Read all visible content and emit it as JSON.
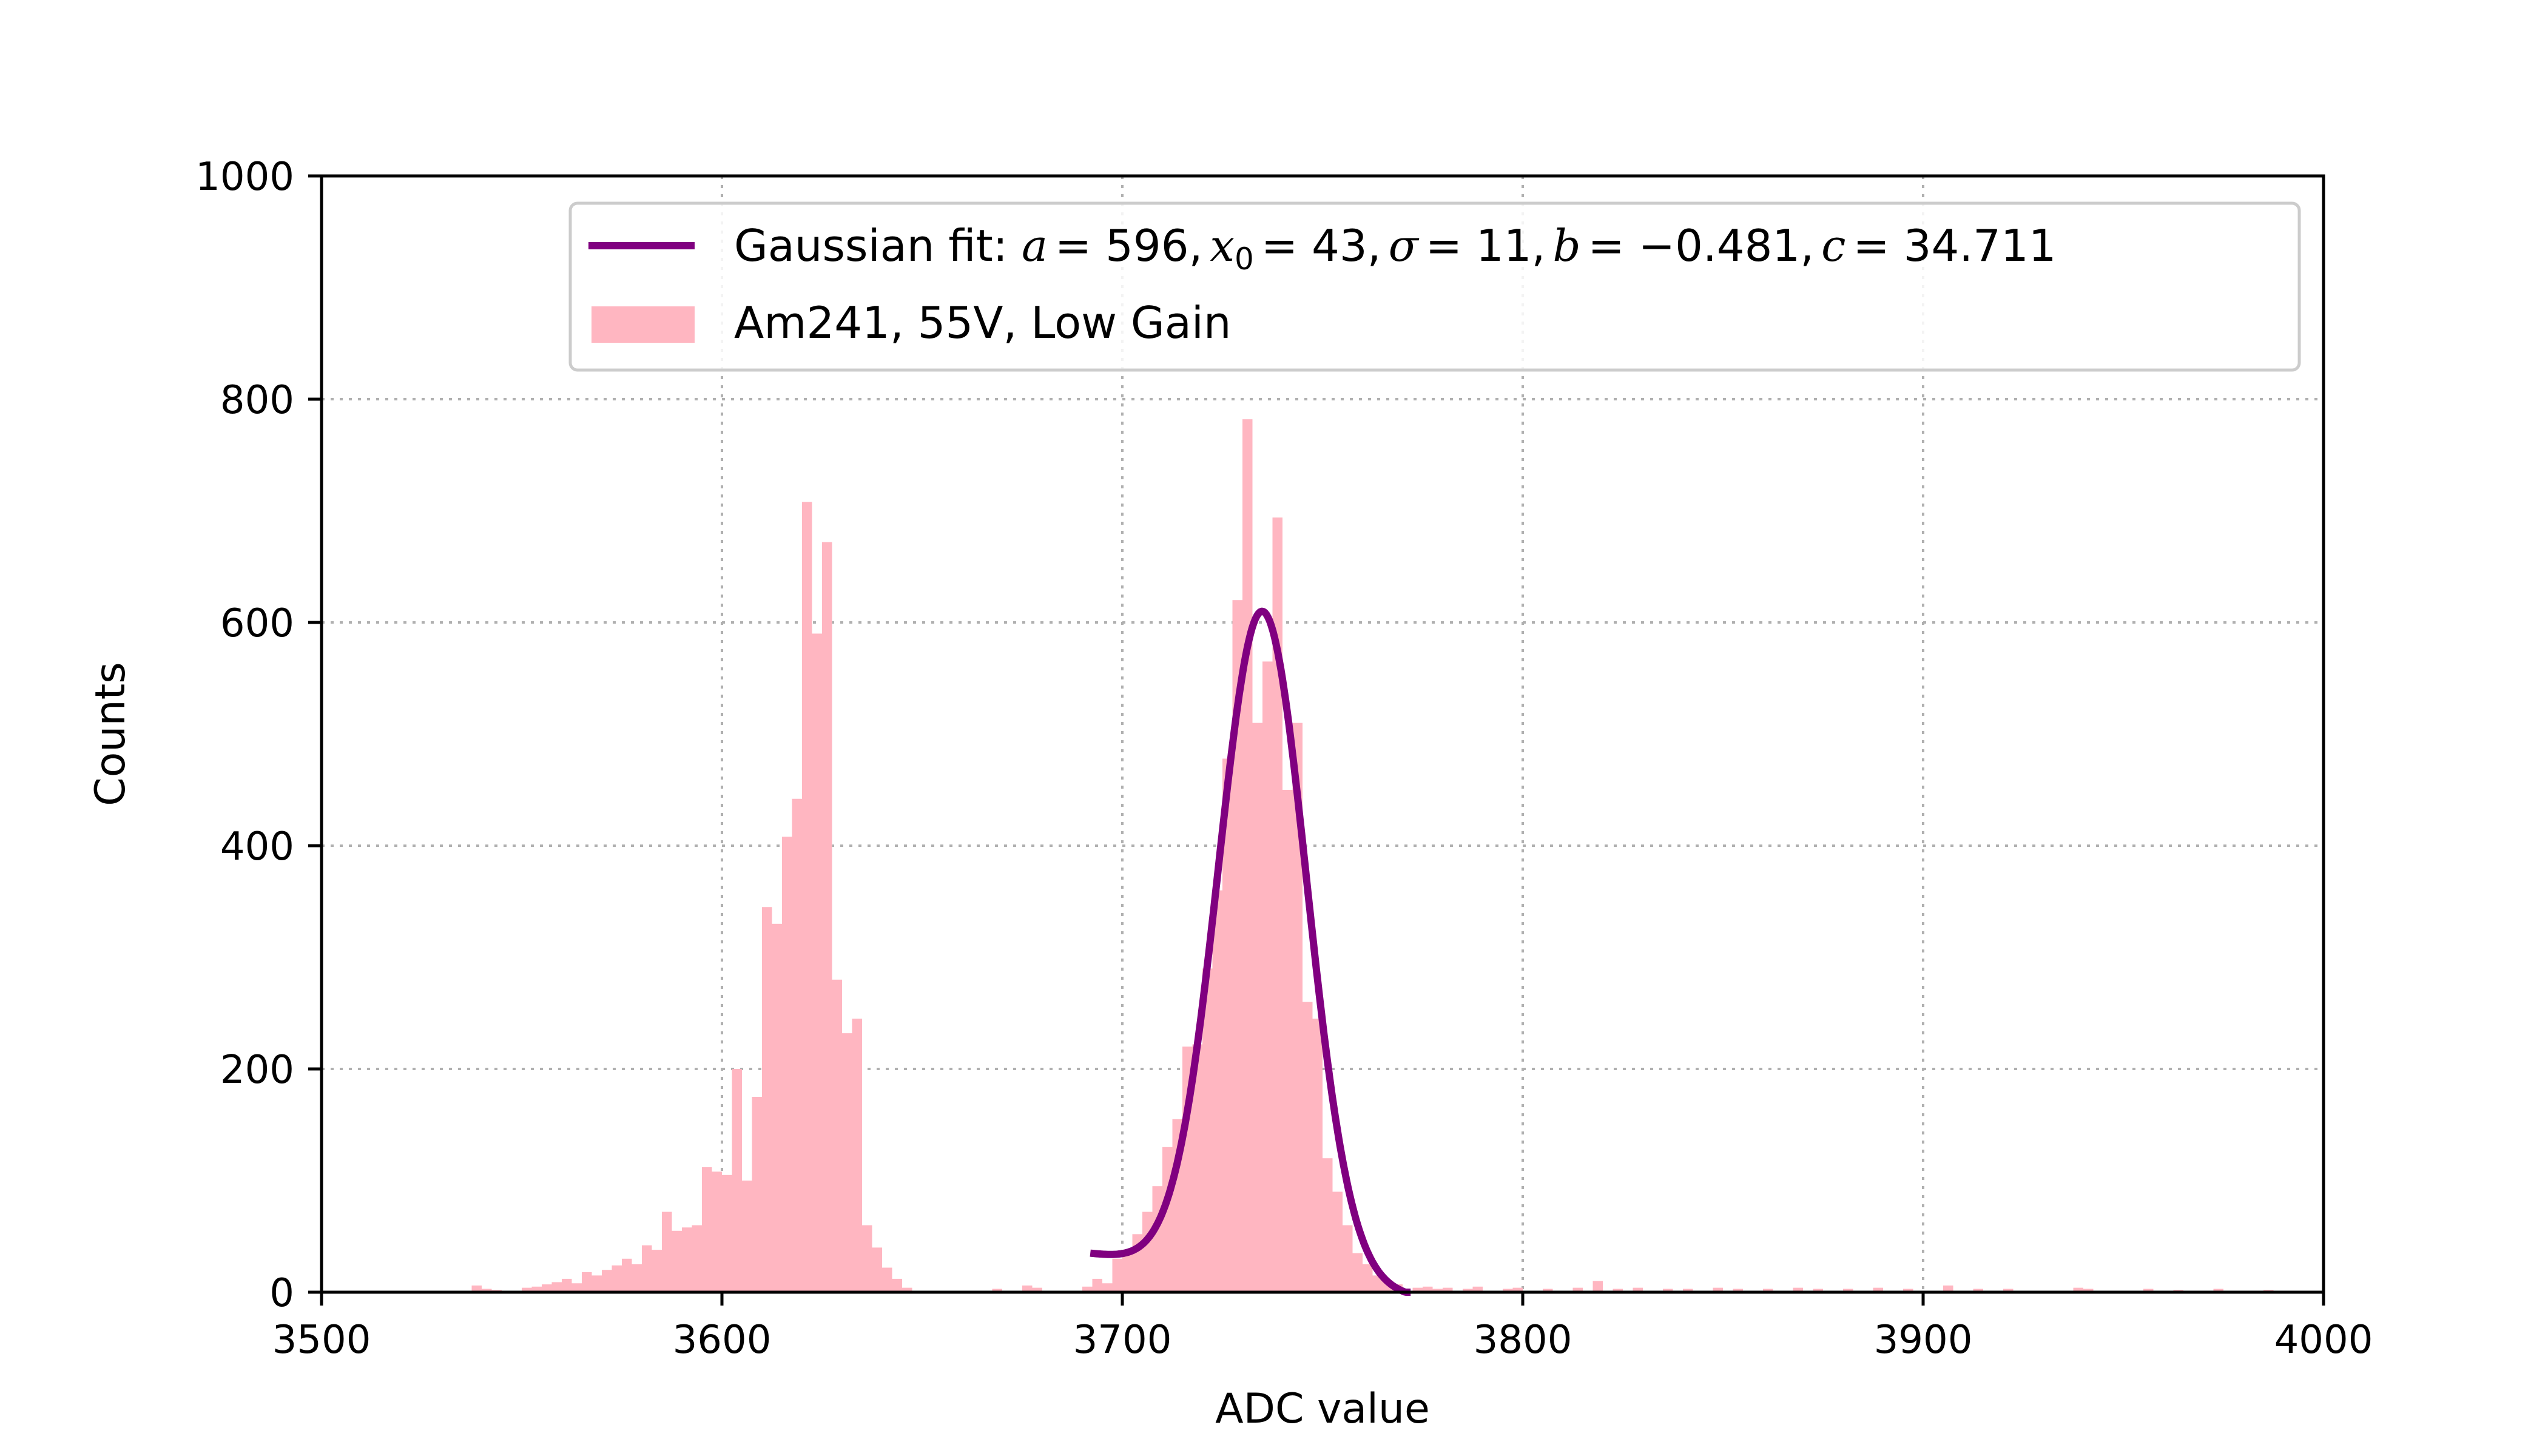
{
  "chart_data": {
    "type": "bar",
    "title": "",
    "xlabel": "ADC value",
    "ylabel": "Counts",
    "xlim": [
      3500,
      4000
    ],
    "ylim": [
      0,
      1000
    ],
    "xticks": [
      "3500",
      "3600",
      "3700",
      "3800",
      "3900",
      "4000"
    ],
    "yticks": [
      "0",
      "200",
      "400",
      "600",
      "800",
      "1000"
    ],
    "grid": true,
    "legend_position": "top-right",
    "bin_width": 2.5,
    "series": [
      {
        "name": "Am241, 55V, Low Gain",
        "kind": "histogram",
        "color": "#ffb6c1",
        "bins": [
          [
            3537.5,
            6
          ],
          [
            3540,
            3
          ],
          [
            3542.5,
            2
          ],
          [
            3550,
            4
          ],
          [
            3552.5,
            5
          ],
          [
            3555,
            7
          ],
          [
            3557.5,
            9
          ],
          [
            3560,
            12
          ],
          [
            3562.5,
            8
          ],
          [
            3565,
            18
          ],
          [
            3567.5,
            15
          ],
          [
            3570,
            20
          ],
          [
            3572.5,
            24
          ],
          [
            3575,
            30
          ],
          [
            3577.5,
            25
          ],
          [
            3580,
            42
          ],
          [
            3582.5,
            38
          ],
          [
            3585,
            72
          ],
          [
            3587.5,
            55
          ],
          [
            3590,
            58
          ],
          [
            3592.5,
            60
          ],
          [
            3595,
            112
          ],
          [
            3597.5,
            108
          ],
          [
            3600,
            105
          ],
          [
            3602.5,
            200
          ],
          [
            3605,
            100
          ],
          [
            3607.5,
            175
          ],
          [
            3610,
            345
          ],
          [
            3612.5,
            330
          ],
          [
            3615,
            408
          ],
          [
            3617.5,
            442
          ],
          [
            3620,
            708
          ],
          [
            3622.5,
            590
          ],
          [
            3625,
            672
          ],
          [
            3627.5,
            280
          ],
          [
            3630,
            232
          ],
          [
            3632.5,
            245
          ],
          [
            3635,
            60
          ],
          [
            3637.5,
            40
          ],
          [
            3640,
            22
          ],
          [
            3642.5,
            12
          ],
          [
            3645,
            4
          ],
          [
            3667.5,
            3
          ],
          [
            3675,
            6
          ],
          [
            3677.5,
            4
          ],
          [
            3690,
            5
          ],
          [
            3692.5,
            12
          ],
          [
            3695,
            8
          ],
          [
            3697.5,
            30
          ],
          [
            3700,
            38
          ],
          [
            3702.5,
            52
          ],
          [
            3705,
            72
          ],
          [
            3707.5,
            95
          ],
          [
            3710,
            130
          ],
          [
            3712.5,
            155
          ],
          [
            3715,
            220
          ],
          [
            3717.5,
            222
          ],
          [
            3720,
            290
          ],
          [
            3722.5,
            360
          ],
          [
            3725,
            478
          ],
          [
            3727.5,
            620
          ],
          [
            3730,
            782
          ],
          [
            3732.5,
            510
          ],
          [
            3735,
            565
          ],
          [
            3737.5,
            694
          ],
          [
            3740,
            450
          ],
          [
            3742.5,
            510
          ],
          [
            3745,
            260
          ],
          [
            3747.5,
            245
          ],
          [
            3750,
            120
          ],
          [
            3752.5,
            90
          ],
          [
            3755,
            60
          ],
          [
            3757.5,
            35
          ],
          [
            3760,
            25
          ],
          [
            3762.5,
            15
          ],
          [
            3765,
            10
          ],
          [
            3767.5,
            7
          ],
          [
            3772.5,
            4
          ],
          [
            3775,
            5
          ],
          [
            3777.5,
            3
          ],
          [
            3780,
            4
          ],
          [
            3785,
            3
          ],
          [
            3787.5,
            5
          ],
          [
            3795,
            3
          ],
          [
            3797.5,
            4
          ],
          [
            3805,
            3
          ],
          [
            3812.5,
            4
          ],
          [
            3817.5,
            10
          ],
          [
            3822.5,
            3
          ],
          [
            3827.5,
            4
          ],
          [
            3835,
            3
          ],
          [
            3840,
            3
          ],
          [
            3847.5,
            4
          ],
          [
            3852.5,
            3
          ],
          [
            3860,
            3
          ],
          [
            3867.5,
            4
          ],
          [
            3872.5,
            3
          ],
          [
            3880,
            3
          ],
          [
            3887.5,
            4
          ],
          [
            3895,
            3
          ],
          [
            3905,
            6
          ],
          [
            3912.5,
            3
          ],
          [
            3920,
            3
          ],
          [
            3937.5,
            4
          ],
          [
            3940,
            3
          ],
          [
            3955,
            3
          ],
          [
            3962.5,
            2
          ],
          [
            3972.5,
            3
          ],
          [
            3985,
            2
          ]
        ]
      },
      {
        "name": "Gaussian fit: a = 596, x0 = 43, σ = 11, b = −0.481, c = 34.711",
        "kind": "line",
        "color": "#800080",
        "x_range": [
          3692,
          3772
        ]
      }
    ],
    "fit": {
      "a": 596,
      "x0": 3735,
      "sigma": 11,
      "b": -0.481,
      "c": 34.711
    },
    "legend": {
      "fit_prefix": "Gaussian fit: ",
      "fit_a_symbol": "a",
      "fit_a": "= 596,",
      "fit_x0_symbol": "x",
      "fit_x0_sub": "0",
      "fit_x0": "= 43,",
      "fit_sigma_symbol": "σ",
      "fit_sigma": "= 11,",
      "fit_b_symbol": "b",
      "fit_b": "= −0.481,",
      "fit_c_symbol": "c",
      "fit_c": "= 34.711",
      "hist_label": "Am241, 55V, Low Gain"
    }
  }
}
